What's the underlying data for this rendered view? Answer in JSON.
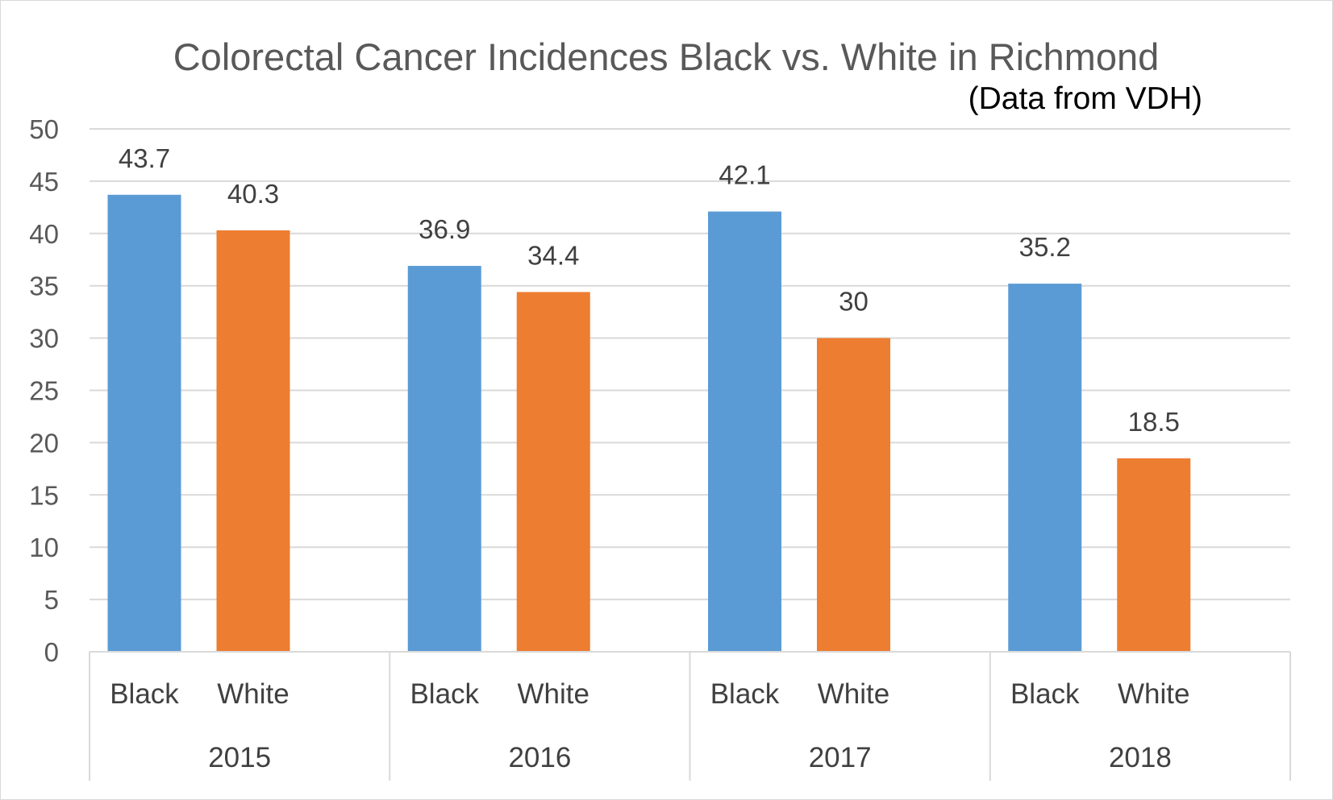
{
  "chart_data": {
    "type": "bar",
    "title": "Colorectal Cancer Incidences Black vs. White in Richmond",
    "subtitle": "(Data from VDH)",
    "xlabel": "",
    "ylabel": "",
    "ylim": [
      0,
      50
    ],
    "yticks": [
      "0",
      "5",
      "10",
      "15",
      "20",
      "25",
      "30",
      "35",
      "40",
      "45",
      "50"
    ],
    "grid": true,
    "legend": "none",
    "groups": [
      {
        "label": "2015",
        "bars": [
          {
            "category": "Black",
            "value": 43.7,
            "label": "43.7"
          },
          {
            "category": "White",
            "value": 40.3,
            "label": "40.3"
          }
        ]
      },
      {
        "label": "2016",
        "bars": [
          {
            "category": "Black",
            "value": 36.9,
            "label": "36.9"
          },
          {
            "category": "White",
            "value": 34.4,
            "label": "34.4"
          }
        ]
      },
      {
        "label": "2017",
        "bars": [
          {
            "category": "Black",
            "value": 42.1,
            "label": "42.1"
          },
          {
            "category": "White",
            "value": 30,
            "label": "30"
          }
        ]
      },
      {
        "label": "2018",
        "bars": [
          {
            "category": "Black",
            "value": 35.2,
            "label": "35.2"
          },
          {
            "category": "White",
            "value": 18.5,
            "label": "18.5"
          }
        ]
      }
    ],
    "colors": {
      "Black": "#5b9bd5",
      "White": "#ed7d31"
    }
  }
}
